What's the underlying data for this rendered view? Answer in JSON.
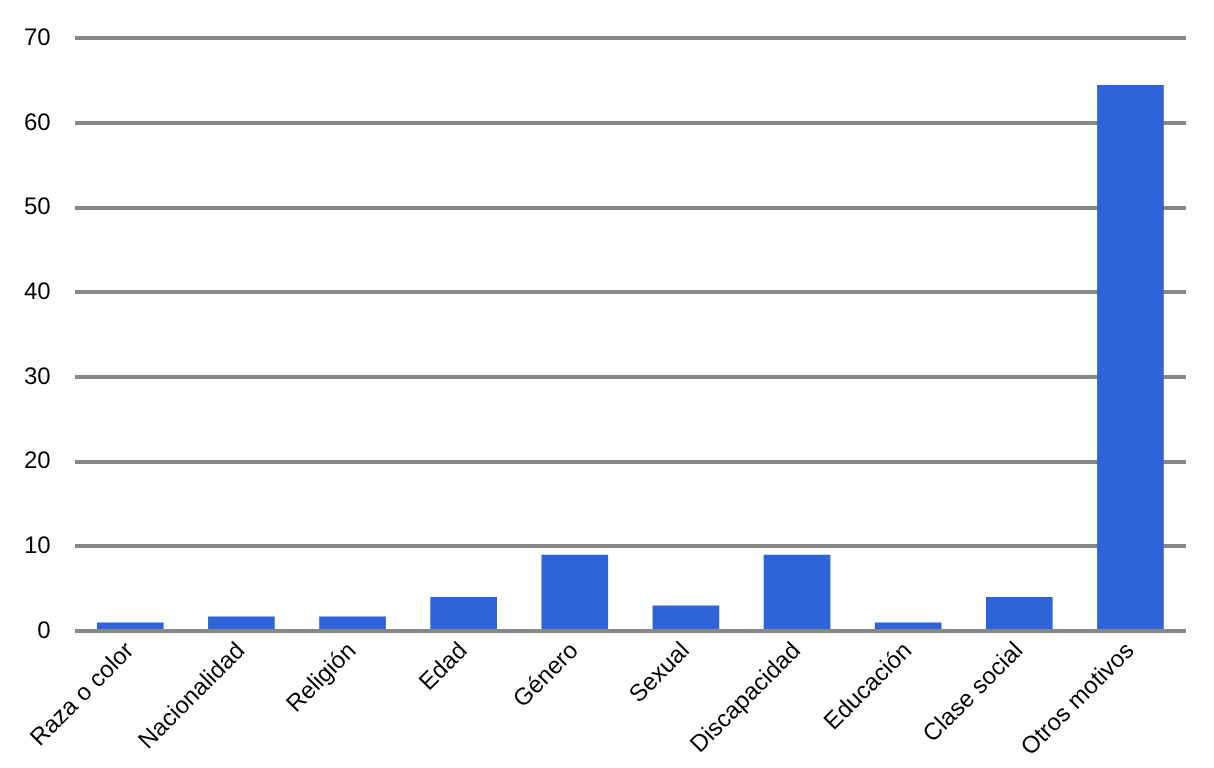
{
  "chart_data": {
    "type": "bar",
    "categories": [
      "Raza o color",
      "Nacionalidad",
      "Religión",
      "Edad",
      "Género",
      "Sexual",
      "Discapacidad",
      "Educación",
      "Clase social",
      "Otros motivos"
    ],
    "values": [
      1,
      1.7,
      1.7,
      4,
      9,
      3,
      9,
      1,
      4,
      64.5
    ],
    "color": "#2f63d8",
    "ylim": [
      0,
      70
    ],
    "yticks": [
      0,
      10,
      20,
      30,
      40,
      50,
      60,
      70
    ],
    "grid": "y",
    "legend": false
  }
}
